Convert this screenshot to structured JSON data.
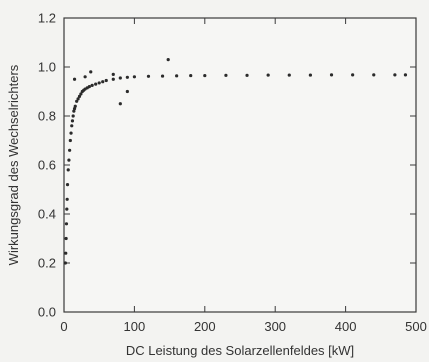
{
  "chart_data": {
    "type": "scatter",
    "xlabel": "DC Leistung des Solarzellenfeldes [kW]",
    "ylabel": "Wirkungsgrad des Wechselrichters",
    "xlim": [
      0,
      500
    ],
    "ylim": [
      0.0,
      1.2
    ],
    "x_ticks": [
      "0",
      "100",
      "200",
      "300",
      "400",
      "500"
    ],
    "y_ticks": [
      "0.0",
      "0.2",
      "0.4",
      "0.6",
      "0.8",
      "1.0",
      "1.2"
    ],
    "grid": false,
    "marker_color": "#2b2b2b",
    "series": [
      {
        "x": [
          2,
          2.5,
          3,
          3.5,
          4,
          4.5,
          5,
          6,
          7,
          8,
          9,
          10,
          11,
          12,
          13,
          14,
          15,
          16,
          18,
          20,
          22,
          24,
          26,
          28,
          30,
          33,
          36,
          40,
          45,
          50,
          55,
          60,
          70,
          80,
          90,
          100,
          120,
          140,
          160,
          180,
          200,
          230,
          260,
          290,
          320,
          350,
          380,
          410,
          440,
          470,
          485
        ],
        "y": [
          0.2,
          0.24,
          0.3,
          0.36,
          0.42,
          0.46,
          0.52,
          0.58,
          0.62,
          0.66,
          0.7,
          0.73,
          0.76,
          0.78,
          0.8,
          0.82,
          0.83,
          0.84,
          0.86,
          0.87,
          0.88,
          0.89,
          0.9,
          0.905,
          0.91,
          0.915,
          0.92,
          0.925,
          0.93,
          0.935,
          0.94,
          0.945,
          0.95,
          0.955,
          0.958,
          0.96,
          0.962,
          0.963,
          0.964,
          0.965,
          0.965,
          0.966,
          0.966,
          0.967,
          0.967,
          0.967,
          0.968,
          0.968,
          0.968,
          0.968,
          0.968
        ]
      },
      {
        "x": [
          15,
          30,
          38,
          70,
          80,
          90,
          148
        ],
        "y": [
          0.95,
          0.96,
          0.98,
          0.97,
          0.85,
          0.9,
          1.03
        ]
      }
    ]
  }
}
